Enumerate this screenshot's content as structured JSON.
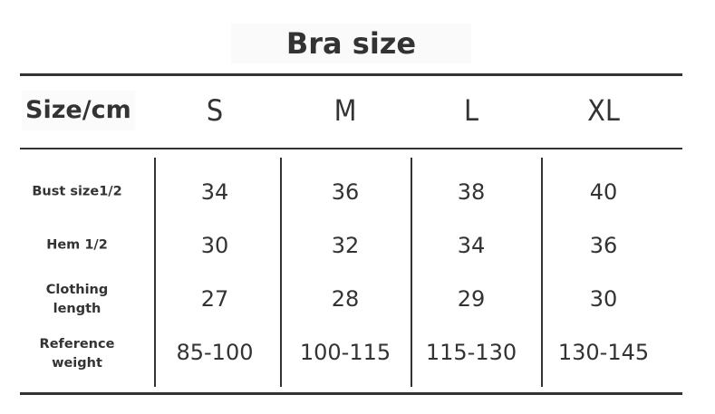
{
  "title": "Bra size",
  "table": {
    "corner_header": "Size/cm",
    "sizes": [
      "S",
      "M",
      "L",
      "XL"
    ],
    "rows": [
      {
        "label": "Bust size1/2",
        "values": [
          "34",
          "36",
          "38",
          "40"
        ]
      },
      {
        "label": "Hem 1/2",
        "values": [
          "30",
          "32",
          "34",
          "36"
        ]
      },
      {
        "label_line1": "Clothing",
        "label_line2": "length",
        "values": [
          "27",
          "28",
          "29",
          "30"
        ]
      },
      {
        "label_line1": "Reference",
        "label_line2": "weight",
        "values": [
          "85-100",
          "100-115",
          "115-130",
          "130-145"
        ]
      }
    ]
  },
  "colors": {
    "text": "#333333",
    "rule": "#333333"
  }
}
